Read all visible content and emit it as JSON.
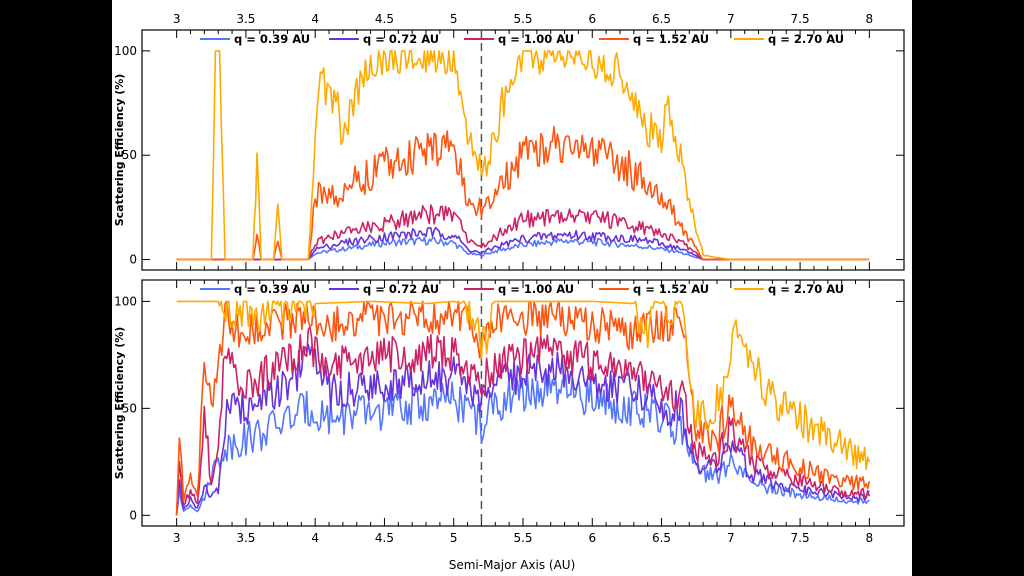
{
  "chart_data": [
    {
      "type": "line",
      "panel": "top",
      "ylabel": "Scattering Efficiency (%)",
      "xlim": [
        2.75,
        8.25
      ],
      "ylim": [
        -5,
        110
      ],
      "yticks": [
        0,
        50,
        100
      ],
      "xticks": [
        "3",
        "3.5",
        "4",
        "4.5",
        "5",
        "5.5",
        "6",
        "6.5",
        "7",
        "7.5",
        "8"
      ],
      "vline_x": 5.2,
      "colors": [
        "#5577ff",
        "#6633dd",
        "#cc2266",
        "#ff5511",
        "#ffaa00"
      ],
      "series": [
        {
          "name": "q = 0.39 AU",
          "x": [
            3,
            3.5,
            3.95,
            4.0,
            4.2,
            4.5,
            4.8,
            5.0,
            5.1,
            5.2,
            5.3,
            5.5,
            5.8,
            6.1,
            6.4,
            6.6,
            6.75,
            6.8,
            7.0,
            8.0
          ],
          "y": [
            0,
            0,
            0,
            3,
            5,
            8,
            9,
            8,
            3,
            2,
            4,
            7,
            9,
            8,
            6,
            4,
            1,
            0,
            0,
            0
          ]
        },
        {
          "name": "q = 0.72 AU",
          "x": [
            3,
            3.5,
            3.95,
            4.0,
            4.2,
            4.5,
            4.8,
            5.0,
            5.1,
            5.2,
            5.3,
            5.5,
            5.8,
            6.1,
            6.4,
            6.6,
            6.75,
            6.8,
            7.0,
            8.0
          ],
          "y": [
            0,
            0,
            0,
            5,
            8,
            11,
            13,
            12,
            5,
            3,
            6,
            10,
            12,
            11,
            9,
            6,
            2,
            0,
            0,
            0
          ]
        },
        {
          "name": "q = 1.00 AU",
          "x": [
            3,
            3.5,
            3.95,
            4.0,
            4.2,
            4.5,
            4.8,
            5.0,
            5.1,
            5.2,
            5.3,
            5.5,
            5.8,
            6.1,
            6.4,
            6.6,
            6.75,
            6.8,
            7.0,
            8.0
          ],
          "y": [
            0,
            0,
            0,
            8,
            13,
            17,
            22,
            21,
            10,
            6,
            11,
            19,
            21,
            19,
            15,
            10,
            3,
            0,
            0,
            0
          ]
        },
        {
          "name": "q = 1.52 AU",
          "x": [
            3,
            3.55,
            3.58,
            3.61,
            3.7,
            3.73,
            3.76,
            3.95,
            4.0,
            4.1,
            4.2,
            4.3,
            4.5,
            4.8,
            5.0,
            5.1,
            5.2,
            5.3,
            5.5,
            5.7,
            6.0,
            6.3,
            6.5,
            6.6,
            6.75,
            6.8,
            7.0,
            8.0
          ],
          "y": [
            0,
            0,
            12,
            0,
            0,
            8,
            0,
            0,
            30,
            35,
            30,
            38,
            45,
            52,
            55,
            28,
            24,
            30,
            50,
            56,
            52,
            42,
            30,
            20,
            5,
            0,
            0,
            0
          ]
        },
        {
          "name": "q = 2.70 AU",
          "x": [
            3,
            3.25,
            3.28,
            3.31,
            3.35,
            3.55,
            3.58,
            3.61,
            3.7,
            3.73,
            3.76,
            3.95,
            4.0,
            4.05,
            4.1,
            4.15,
            4.2,
            4.3,
            4.4,
            4.6,
            4.8,
            5.0,
            5.1,
            5.2,
            5.3,
            5.4,
            5.5,
            5.8,
            6.0,
            6.2,
            6.3,
            6.4,
            6.5,
            6.55,
            6.6,
            6.7,
            6.8,
            7.0,
            8.0
          ],
          "y": [
            0,
            0,
            100,
            100,
            0,
            0,
            50,
            0,
            0,
            30,
            0,
            0,
            60,
            88,
            75,
            82,
            55,
            80,
            95,
            98,
            97,
            97,
            55,
            42,
            60,
            88,
            98,
            97,
            96,
            90,
            75,
            62,
            60,
            75,
            60,
            30,
            2,
            0,
            0
          ]
        }
      ]
    },
    {
      "type": "line",
      "panel": "bottom",
      "ylabel": "Scattering Efficiency (%)",
      "xlabel": "Semi-Major Axis (AU)",
      "xlim": [
        2.75,
        8.25
      ],
      "ylim": [
        -5,
        110
      ],
      "yticks": [
        0,
        50,
        100
      ],
      "xticks": [
        "3",
        "3.5",
        "4",
        "4.5",
        "5",
        "5.5",
        "6",
        "6.5",
        "7",
        "7.5",
        "8"
      ],
      "vline_x": 5.2,
      "colors": [
        "#5577ff",
        "#6633dd",
        "#cc2266",
        "#ff5511",
        "#ffaa00"
      ],
      "series": [
        {
          "name": "q = 0.39 AU",
          "x": [
            3,
            3.02,
            3.05,
            3.1,
            3.15,
            3.2,
            3.25,
            3.3,
            3.35,
            3.45,
            3.6,
            3.8,
            3.95,
            4.1,
            4.4,
            4.8,
            5.0,
            5.15,
            5.2,
            5.25,
            5.4,
            5.7,
            6.0,
            6.3,
            6.5,
            6.65,
            6.75,
            6.9,
            7.0,
            7.05,
            7.15,
            7.3,
            7.5,
            7.7,
            7.85,
            8.0
          ],
          "y": [
            0,
            10,
            2,
            5,
            2,
            8,
            20,
            25,
            32,
            35,
            38,
            45,
            50,
            46,
            48,
            52,
            54,
            48,
            40,
            48,
            56,
            58,
            55,
            50,
            45,
            40,
            20,
            18,
            25,
            22,
            15,
            12,
            10,
            8,
            6,
            7
          ]
        },
        {
          "name": "q = 0.72 AU",
          "x": [
            3,
            3.02,
            3.05,
            3.1,
            3.15,
            3.2,
            3.25,
            3.3,
            3.35,
            3.45,
            3.6,
            3.8,
            3.95,
            4.1,
            4.4,
            4.8,
            5.0,
            5.15,
            5.2,
            5.25,
            5.4,
            5.7,
            6.0,
            6.3,
            6.5,
            6.65,
            6.75,
            6.9,
            7.0,
            7.05,
            7.15,
            7.3,
            7.5,
            7.7,
            7.85,
            8.0
          ],
          "y": [
            0,
            15,
            3,
            8,
            3,
            15,
            8,
            12,
            45,
            50,
            52,
            60,
            75,
            58,
            60,
            64,
            65,
            58,
            50,
            58,
            65,
            68,
            64,
            58,
            52,
            48,
            25,
            22,
            32,
            28,
            20,
            15,
            12,
            10,
            8,
            9
          ]
        },
        {
          "name": "q = 1.00 AU",
          "x": [
            3,
            3.02,
            3.05,
            3.1,
            3.15,
            3.2,
            3.25,
            3.3,
            3.35,
            3.45,
            3.6,
            3.8,
            3.95,
            4.1,
            4.4,
            4.8,
            5.0,
            5.15,
            5.2,
            5.25,
            5.4,
            5.7,
            6.0,
            6.3,
            6.5,
            6.65,
            6.75,
            6.9,
            7.0,
            7.05,
            7.15,
            7.3,
            7.5,
            7.7,
            7.85,
            8.0
          ],
          "y": [
            0,
            25,
            5,
            12,
            5,
            50,
            15,
            30,
            82,
            62,
            65,
            72,
            80,
            70,
            74,
            76,
            75,
            68,
            58,
            68,
            74,
            76,
            72,
            66,
            60,
            55,
            30,
            28,
            40,
            35,
            25,
            20,
            16,
            12,
            10,
            11
          ]
        },
        {
          "name": "q = 1.52 AU",
          "x": [
            3,
            3.02,
            3.05,
            3.1,
            3.15,
            3.2,
            3.25,
            3.3,
            3.35,
            3.45,
            3.6,
            3.8,
            3.95,
            4.1,
            4.4,
            4.8,
            5.0,
            5.15,
            5.2,
            5.25,
            5.4,
            5.7,
            6.0,
            6.3,
            6.5,
            6.65,
            6.75,
            6.9,
            7.0,
            7.05,
            7.15,
            7.3,
            7.5,
            7.7,
            7.85,
            8.0
          ],
          "y": [
            0,
            40,
            8,
            18,
            8,
            72,
            50,
            70,
            95,
            86,
            88,
            90,
            92,
            90,
            92,
            94,
            93,
            88,
            78,
            90,
            92,
            93,
            90,
            85,
            90,
            88,
            40,
            35,
            55,
            48,
            35,
            28,
            22,
            18,
            15,
            16
          ]
        },
        {
          "name": "q = 2.70 AU",
          "x": [
            3,
            3.3,
            3.32,
            3.4,
            3.6,
            3.8,
            4.0,
            4.4,
            4.8,
            5.0,
            5.1,
            5.15,
            5.2,
            5.25,
            5.3,
            5.4,
            5.6,
            6.0,
            6.3,
            6.4,
            6.45,
            6.5,
            6.6,
            6.65,
            6.75,
            6.85,
            6.95,
            7.05,
            7.15,
            7.3,
            7.5,
            7.7,
            7.85,
            8.0
          ],
          "y": [
            100,
            100,
            96,
            97,
            95,
            96,
            99,
            100,
            99,
            100,
            98,
            90,
            78,
            85,
            100,
            100,
            100,
            100,
            99,
            85,
            100,
            99,
            98,
            96,
            45,
            45,
            60,
            90,
            70,
            55,
            45,
            38,
            30,
            25
          ]
        }
      ]
    }
  ]
}
